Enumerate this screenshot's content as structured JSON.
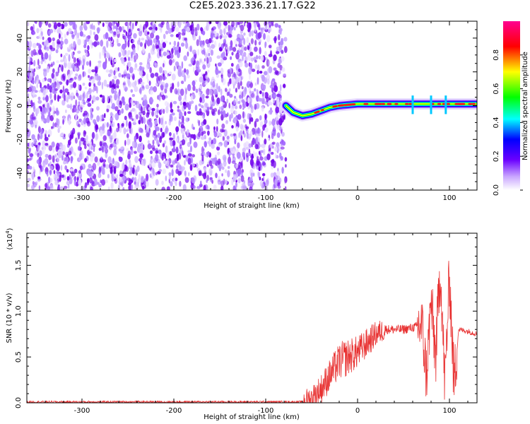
{
  "title": "C2E5.2023.336.21.17.G22",
  "chart_data": [
    {
      "type": "heatmap",
      "xlabel": "Height of straight line (km)",
      "ylabel": "Frequency (Hz)",
      "xlim": [
        -360,
        130
      ],
      "ylim": [
        -50,
        50
      ],
      "xticks": [
        -300,
        -200,
        -100,
        0,
        100
      ],
      "yticks": [
        -40,
        -20,
        0,
        20,
        40
      ],
      "no_data_x_range": [
        -78,
        130
      ],
      "signal_ridge": {
        "x": [
          -78,
          -70,
          -60,
          -50,
          -40,
          -30,
          -20,
          -10,
          0,
          20,
          40,
          60,
          80,
          100,
          130
        ],
        "frequency": [
          0,
          -4,
          -6,
          -5,
          -3,
          -1,
          0,
          0.5,
          1,
          1,
          1,
          1,
          1,
          1,
          1
        ]
      },
      "colorbar": {
        "label": "Normalized spectral amplitude",
        "range": [
          0,
          1
        ],
        "ticks": [
          0.0,
          0.2,
          0.4,
          0.6,
          0.8
        ],
        "colormap": [
          "#ffffff",
          "#7b00e6",
          "#0000ff",
          "#00ffff",
          "#00ff00",
          "#ffff00",
          "#ff0000",
          "#ff00a0"
        ]
      }
    },
    {
      "type": "line",
      "xlabel": "Height of straight line (km)",
      "ylabel": "SNR (10 * v/v)",
      "ylabel_multiplier": "(x10^4)",
      "multiplier_base": "(x10",
      "multiplier_exp": "4",
      "multiplier_close": ")",
      "xlim": [
        -360,
        130
      ],
      "ylim": [
        0,
        1.85
      ],
      "xticks": [
        -300,
        -200,
        -100,
        0,
        100
      ],
      "yticks": [
        0.0,
        0.5,
        1.0,
        1.5
      ],
      "ytick_labels": [
        "0.0",
        "0.5",
        "1.0",
        "1.5"
      ],
      "series": [
        {
          "color": "#e83232",
          "x": [
            -360,
            -300,
            -200,
            -100,
            -60,
            -50,
            -40,
            -30,
            -20,
            -10,
            0,
            10,
            20,
            30,
            40,
            50,
            60,
            70,
            75,
            80,
            85,
            90,
            95,
            100,
            105,
            110,
            120,
            130
          ],
          "values": [
            0.01,
            0.01,
            0.01,
            0.01,
            0.01,
            0.05,
            0.15,
            0.3,
            0.45,
            0.5,
            0.55,
            0.65,
            0.75,
            0.8,
            0.8,
            0.8,
            0.82,
            0.85,
            0.3,
            1.1,
            0.5,
            1.5,
            0.2,
            1.4,
            0.2,
            0.8,
            0.78,
            0.75
          ]
        }
      ]
    }
  ]
}
